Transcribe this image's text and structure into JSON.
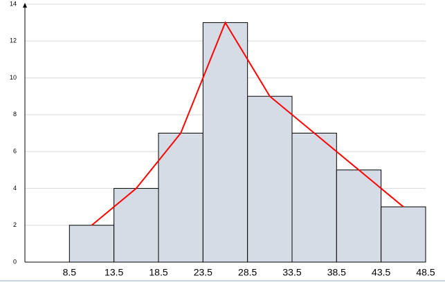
{
  "chart_data": {
    "type": "histogram",
    "bins": [
      8.5,
      13.5,
      18.5,
      23.5,
      28.5,
      33.5,
      38.5,
      43.5,
      48.5
    ],
    "values": [
      2,
      4,
      7,
      13,
      9,
      7,
      5,
      3
    ],
    "color": "#d6dce5",
    "xlim": [
      3.5,
      48.5
    ],
    "ylim": [
      0,
      14
    ],
    "yticks": [
      0,
      2,
      4,
      6,
      8,
      10,
      12,
      14
    ],
    "grid": true,
    "line": {
      "x": [
        11,
        16,
        21,
        26,
        31,
        36,
        41,
        46
      ],
      "values": [
        2,
        4,
        7,
        13,
        9,
        7,
        5,
        3
      ],
      "color": "#ff0000"
    }
  }
}
